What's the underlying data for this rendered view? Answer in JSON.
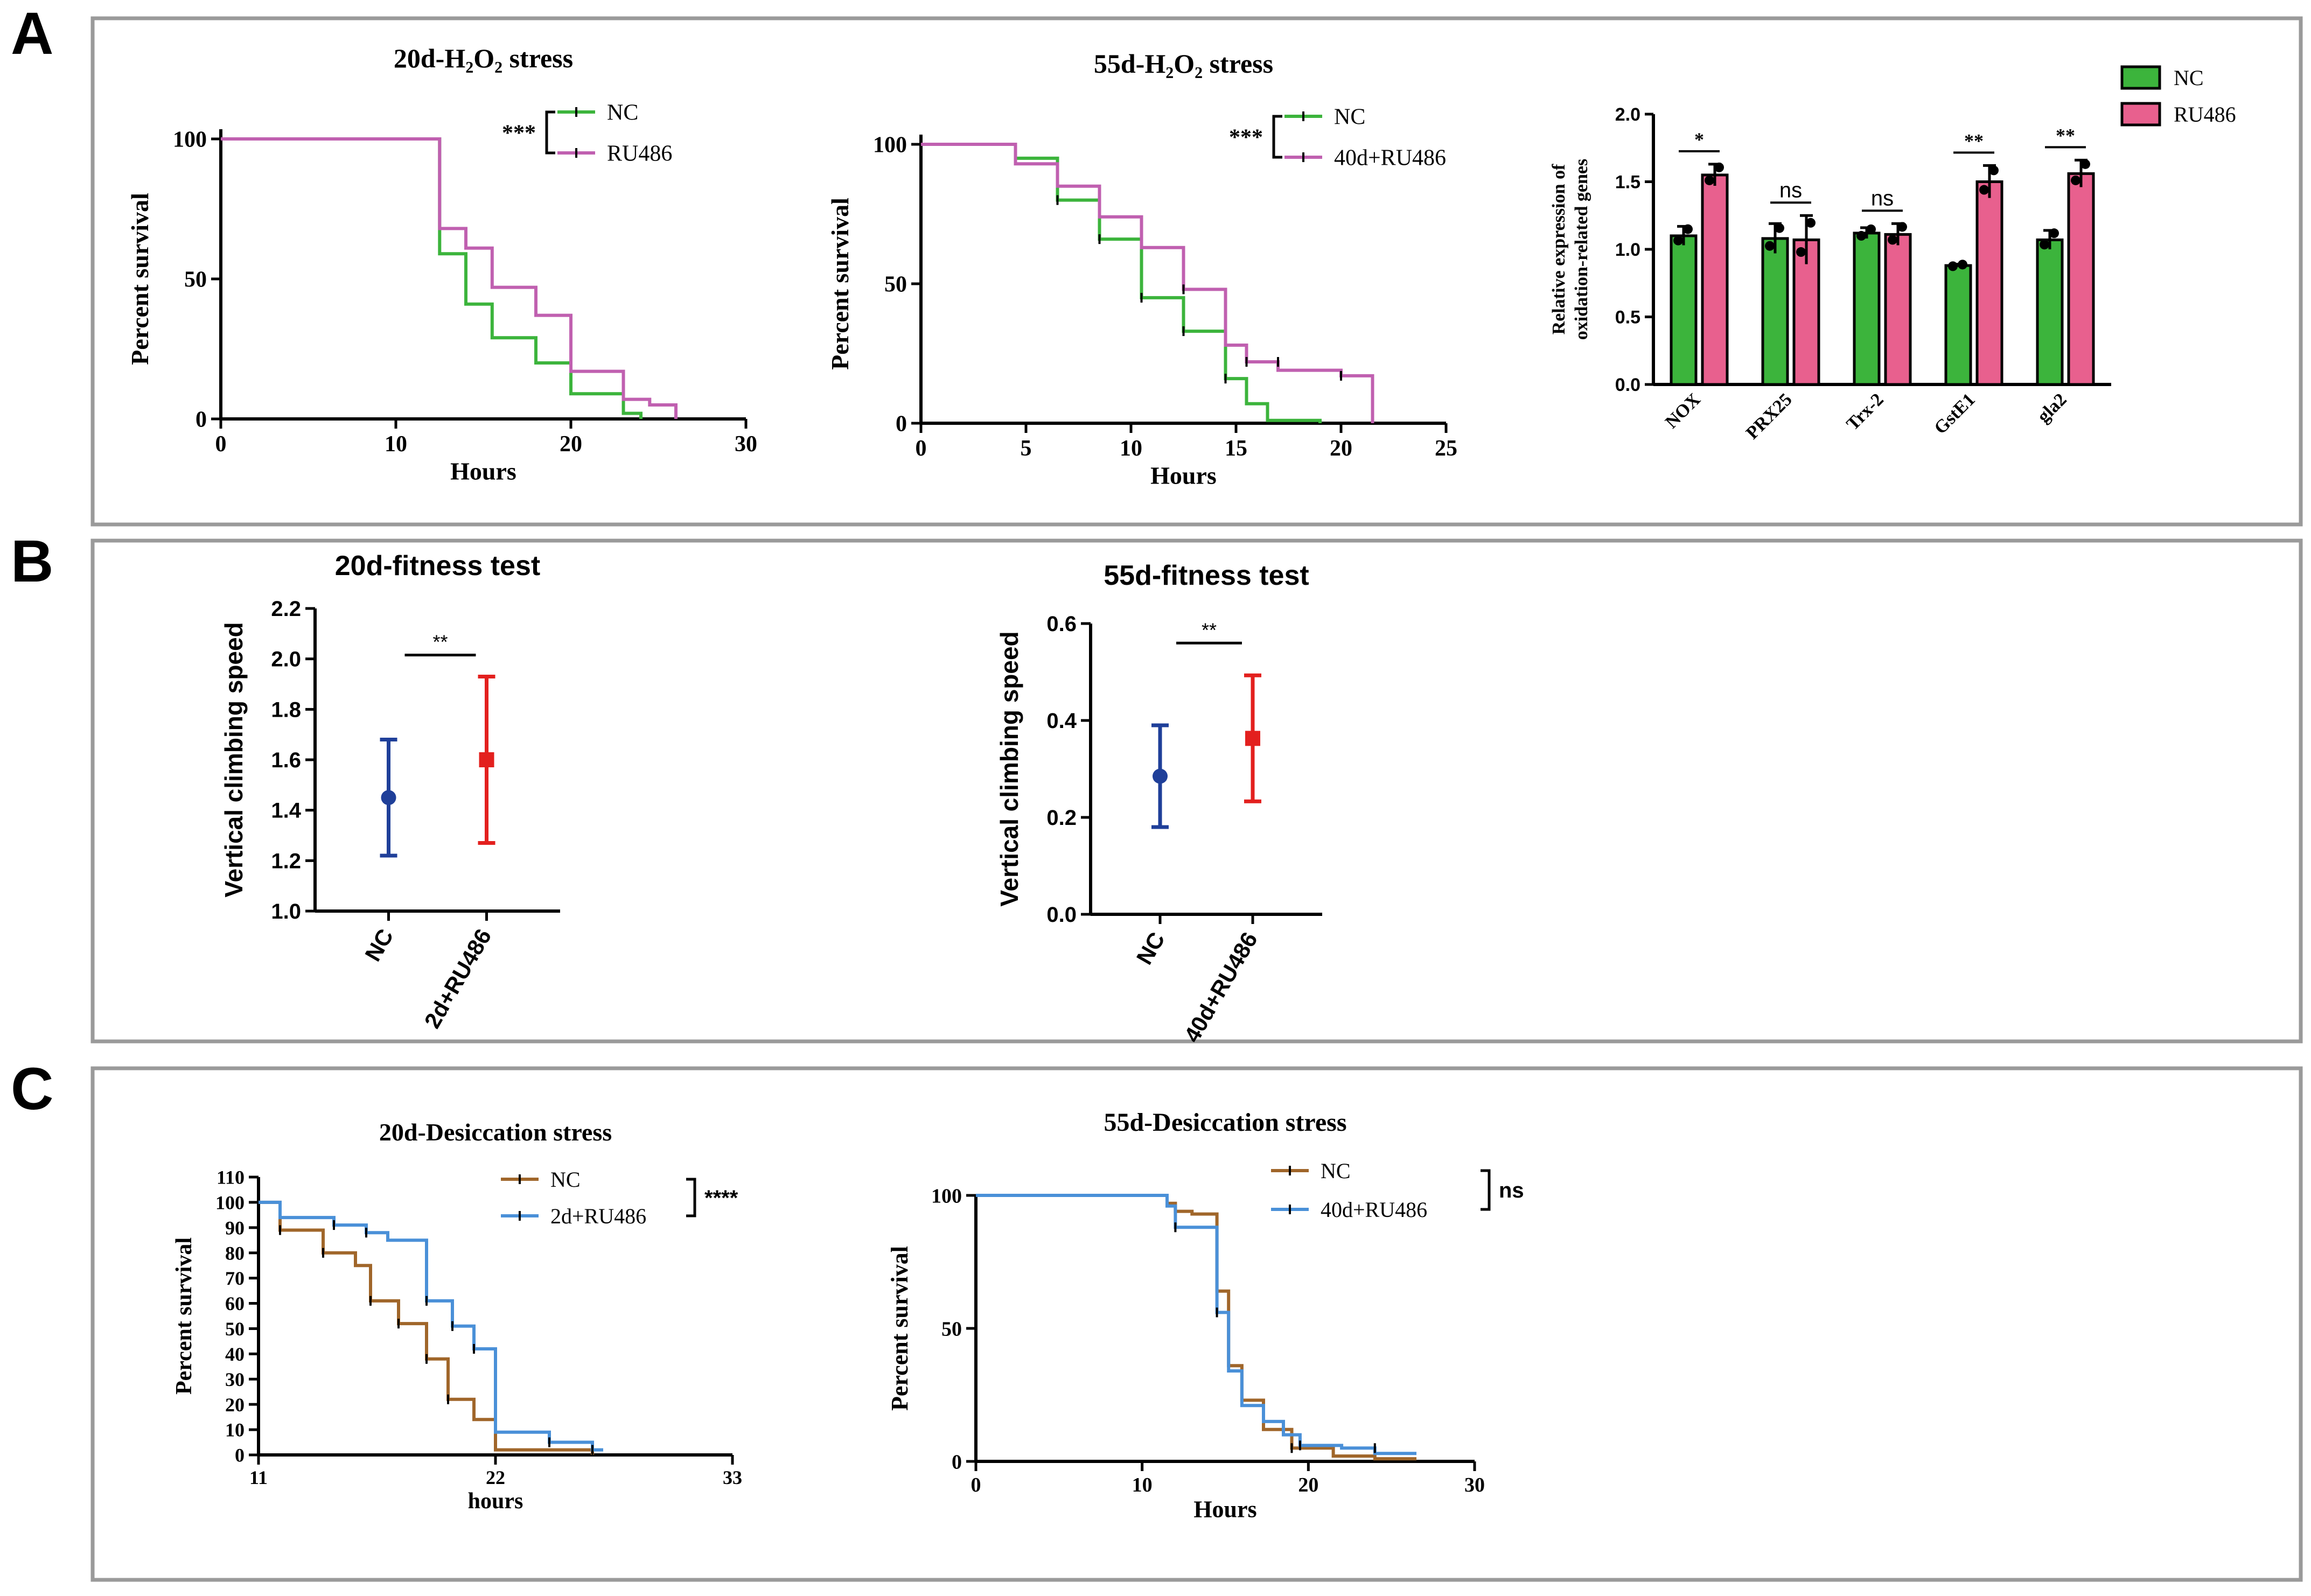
{
  "panels": [
    {
      "letter": "A"
    },
    {
      "letter": "B"
    },
    {
      "letter": "C"
    }
  ],
  "chart_data": [
    {
      "id": "a1",
      "type": "line",
      "step": true,
      "title": "20d-H₂O₂ stress",
      "xlabel": "Hours",
      "ylabel": "Percent survival",
      "xlim": [
        0,
        30
      ],
      "ylim": [
        0,
        100
      ],
      "xticks": [
        0,
        10,
        20,
        30
      ],
      "yticks": [
        0,
        50,
        100
      ],
      "legend_position": "top-right",
      "significance": "***",
      "series": [
        {
          "name": "NC",
          "color": "#3cb43c",
          "points": [
            [
              0,
              100
            ],
            [
              12.5,
              100
            ],
            [
              12.5,
              59
            ],
            [
              14,
              59
            ],
            [
              14,
              41
            ],
            [
              15.5,
              41
            ],
            [
              15.5,
              29
            ],
            [
              18,
              29
            ],
            [
              18,
              20
            ],
            [
              20,
              20
            ],
            [
              20,
              9
            ],
            [
              23,
              9
            ],
            [
              23,
              2
            ],
            [
              24,
              2
            ],
            [
              24,
              0
            ]
          ],
          "censor": []
        },
        {
          "name": "RU486",
          "color": "#c060b0",
          "points": [
            [
              0,
              100
            ],
            [
              12.5,
              100
            ],
            [
              12.5,
              68
            ],
            [
              14,
              68
            ],
            [
              14,
              61
            ],
            [
              15.5,
              61
            ],
            [
              15.5,
              47
            ],
            [
              18,
              47
            ],
            [
              18,
              37
            ],
            [
              20,
              37
            ],
            [
              20,
              17
            ],
            [
              23,
              17
            ],
            [
              23,
              7
            ],
            [
              24.5,
              7
            ],
            [
              24.5,
              5
            ],
            [
              26,
              5
            ],
            [
              26,
              0
            ]
          ],
          "censor": []
        }
      ]
    },
    {
      "id": "a2",
      "type": "line",
      "step": true,
      "title": "55d-H₂O₂ stress",
      "xlabel": "Hours",
      "ylabel": "Percent survival",
      "xlim": [
        0,
        25
      ],
      "ylim": [
        0,
        100
      ],
      "xticks": [
        0,
        5,
        10,
        15,
        20,
        25
      ],
      "yticks": [
        0,
        50,
        100
      ],
      "legend_position": "top-right",
      "significance": "***",
      "series": [
        {
          "name": "NC",
          "color": "#3cb43c",
          "points": [
            [
              0,
              100
            ],
            [
              4.5,
              100
            ],
            [
              4.5,
              95
            ],
            [
              6.5,
              95
            ],
            [
              6.5,
              80
            ],
            [
              8.5,
              80
            ],
            [
              8.5,
              66
            ],
            [
              10.5,
              66
            ],
            [
              10.5,
              45
            ],
            [
              12.5,
              45
            ],
            [
              12.5,
              33
            ],
            [
              14.5,
              33
            ],
            [
              14.5,
              16
            ],
            [
              15.5,
              16
            ],
            [
              15.5,
              7
            ],
            [
              16.5,
              7
            ],
            [
              16.5,
              1
            ],
            [
              19,
              1
            ],
            [
              19,
              0
            ]
          ],
          "censor": [
            [
              4.5,
              95
            ],
            [
              6.5,
              80
            ],
            [
              8.5,
              66
            ],
            [
              10.5,
              45
            ],
            [
              12.5,
              33
            ],
            [
              14.5,
              16
            ]
          ]
        },
        {
          "name": "40d+RU486",
          "color": "#c060b0",
          "points": [
            [
              0,
              100
            ],
            [
              4.5,
              100
            ],
            [
              4.5,
              93
            ],
            [
              6.5,
              93
            ],
            [
              6.5,
              85
            ],
            [
              8.5,
              85
            ],
            [
              8.5,
              74
            ],
            [
              10.5,
              74
            ],
            [
              10.5,
              63
            ],
            [
              12.5,
              63
            ],
            [
              12.5,
              48
            ],
            [
              14.5,
              48
            ],
            [
              14.5,
              28
            ],
            [
              15.5,
              28
            ],
            [
              15.5,
              22
            ],
            [
              17,
              22
            ],
            [
              17,
              19
            ],
            [
              20,
              19
            ],
            [
              20,
              17
            ],
            [
              21.5,
              17
            ],
            [
              21.5,
              0
            ]
          ],
          "censor": [
            [
              12.5,
              48
            ],
            [
              15.5,
              22
            ],
            [
              17,
              22
            ],
            [
              20,
              17
            ]
          ]
        }
      ]
    },
    {
      "id": "a3",
      "type": "bar",
      "ylabel": "Relative expression of oxidation-related genes",
      "ylim": [
        0,
        2.0
      ],
      "yticks": [
        0.0,
        0.5,
        1.0,
        1.5,
        2.0
      ],
      "categories": [
        "NOX",
        "PRX25",
        "Trx-2",
        "GstE1",
        "gla2"
      ],
      "legend_position": "top-right",
      "series": [
        {
          "name": "NC",
          "color": "#3cb43c",
          "values": [
            1.1,
            1.08,
            1.12,
            0.88,
            1.07
          ],
          "errors": [
            0.07,
            0.11,
            0.04,
            0.01,
            0.07
          ]
        },
        {
          "name": "RU486",
          "color": "#e8608e",
          "values": [
            1.55,
            1.07,
            1.11,
            1.5,
            1.56
          ],
          "errors": [
            0.08,
            0.18,
            0.08,
            0.12,
            0.1
          ]
        }
      ],
      "significance": [
        "*",
        "ns",
        "ns",
        "**",
        "**"
      ]
    },
    {
      "id": "b1",
      "type": "scatter",
      "title": "20d-fitness test",
      "ylabel": "Vertical climbing speed",
      "ylim": [
        1.0,
        2.2
      ],
      "yticks": [
        1.0,
        1.2,
        1.4,
        1.6,
        1.8,
        2.0,
        2.2
      ],
      "categories": [
        "NC",
        "2d+RU486"
      ],
      "values": [
        1.45,
        1.6
      ],
      "errors": [
        0.23,
        0.33
      ],
      "colors": [
        "#1f3f99",
        "#e3201e"
      ],
      "significance": "**"
    },
    {
      "id": "b2",
      "type": "scatter",
      "title": "55d-fitness test",
      "ylabel": "Vertical climbing speed",
      "ylim": [
        0.0,
        0.6
      ],
      "yticks": [
        0.0,
        0.2,
        0.4,
        0.6
      ],
      "categories": [
        "NC",
        "40d+RU486"
      ],
      "values": [
        0.285,
        0.363
      ],
      "errors": [
        0.105,
        0.13
      ],
      "colors": [
        "#1f3f99",
        "#e3201e"
      ],
      "significance": "**"
    },
    {
      "id": "c1",
      "type": "line",
      "step": true,
      "title": "20d-Desiccation stress",
      "xlabel": "hours",
      "ylabel": "Percent survival",
      "xlim": [
        11,
        33
      ],
      "ylim": [
        0,
        110
      ],
      "xticks": [
        11,
        22,
        33
      ],
      "yticks": [
        0,
        10,
        20,
        30,
        40,
        50,
        60,
        70,
        80,
        90,
        100,
        110
      ],
      "legend_position": "top-right",
      "significance": "****",
      "series": [
        {
          "name": "NC",
          "color": "#a0662a",
          "points": [
            [
              11,
              100
            ],
            [
              12,
              100
            ],
            [
              12,
              89
            ],
            [
              14,
              89
            ],
            [
              14,
              80
            ],
            [
              15.5,
              80
            ],
            [
              15.5,
              75
            ],
            [
              16.2,
              75
            ],
            [
              16.2,
              61
            ],
            [
              17.5,
              61
            ],
            [
              17.5,
              52
            ],
            [
              18.8,
              52
            ],
            [
              18.8,
              38
            ],
            [
              19.8,
              38
            ],
            [
              19.8,
              22
            ],
            [
              21,
              22
            ],
            [
              21,
              14
            ],
            [
              22,
              14
            ],
            [
              22,
              2
            ],
            [
              26.5,
              2
            ],
            [
              26.5,
              0
            ]
          ],
          "censor": [
            [
              12,
              89
            ],
            [
              14,
              80
            ],
            [
              16.2,
              61
            ],
            [
              17.5,
              52
            ],
            [
              18.8,
              38
            ],
            [
              19.8,
              22
            ]
          ]
        },
        {
          "name": "2d+RU486",
          "color": "#4a90d8",
          "points": [
            [
              11,
              100
            ],
            [
              12,
              100
            ],
            [
              12,
              94
            ],
            [
              14.5,
              94
            ],
            [
              14.5,
              91
            ],
            [
              16,
              91
            ],
            [
              16,
              88
            ],
            [
              17,
              88
            ],
            [
              17,
              85
            ],
            [
              18.8,
              85
            ],
            [
              18.8,
              61
            ],
            [
              20,
              61
            ],
            [
              20,
              51
            ],
            [
              21,
              51
            ],
            [
              21,
              42
            ],
            [
              22,
              42
            ],
            [
              22,
              9
            ],
            [
              24.5,
              9
            ],
            [
              24.5,
              5
            ],
            [
              26.5,
              5
            ],
            [
              26.5,
              2
            ],
            [
              27,
              2
            ]
          ],
          "censor": [
            [
              14.5,
              91
            ],
            [
              16,
              88
            ],
            [
              18.8,
              61
            ],
            [
              20,
              51
            ],
            [
              21,
              42
            ],
            [
              24.5,
              5
            ],
            [
              26.5,
              2
            ]
          ]
        }
      ]
    },
    {
      "id": "c2",
      "type": "line",
      "step": true,
      "title": "55d-Desiccation stress",
      "xlabel": "Hours",
      "ylabel": "Percent survival",
      "xlim": [
        0,
        30
      ],
      "ylim": [
        0,
        100
      ],
      "xticks": [
        0,
        10,
        20,
        30
      ],
      "yticks": [
        0,
        50,
        100
      ],
      "legend_position": "top-right",
      "significance": "ns",
      "series": [
        {
          "name": "NC",
          "color": "#a0662a",
          "points": [
            [
              0,
              100
            ],
            [
              11.5,
              100
            ],
            [
              11.5,
              97
            ],
            [
              12,
              97
            ],
            [
              12,
              94
            ],
            [
              13,
              94
            ],
            [
              13,
              93
            ],
            [
              14.5,
              93
            ],
            [
              14.5,
              64
            ],
            [
              15.2,
              64
            ],
            [
              15.2,
              36
            ],
            [
              16,
              36
            ],
            [
              16,
              23
            ],
            [
              17.3,
              23
            ],
            [
              17.3,
              12
            ],
            [
              19,
              12
            ],
            [
              19,
              5
            ],
            [
              21.5,
              5
            ],
            [
              21.5,
              2
            ],
            [
              24,
              2
            ],
            [
              24,
              1
            ],
            [
              26.5,
              1
            ]
          ],
          "censor": [
            [
              14.5,
              64
            ],
            [
              16,
              23
            ],
            [
              19,
              5
            ]
          ]
        },
        {
          "name": "40d+RU486",
          "color": "#4a90d8",
          "points": [
            [
              0,
              100
            ],
            [
              11.5,
              100
            ],
            [
              11.5,
              96
            ],
            [
              12,
              96
            ],
            [
              12,
              88
            ],
            [
              14.5,
              88
            ],
            [
              14.5,
              56
            ],
            [
              15.2,
              56
            ],
            [
              15.2,
              34
            ],
            [
              16,
              34
            ],
            [
              16,
              21
            ],
            [
              17.3,
              21
            ],
            [
              17.3,
              15
            ],
            [
              18.5,
              15
            ],
            [
              18.5,
              10
            ],
            [
              19.5,
              10
            ],
            [
              19.5,
              6
            ],
            [
              22,
              6
            ],
            [
              22,
              5
            ],
            [
              24,
              5
            ],
            [
              24,
              3
            ],
            [
              26.5,
              3
            ]
          ],
          "censor": [
            [
              12,
              88
            ],
            [
              14.5,
              56
            ],
            [
              19.5,
              6
            ],
            [
              24,
              5
            ]
          ]
        }
      ]
    }
  ]
}
